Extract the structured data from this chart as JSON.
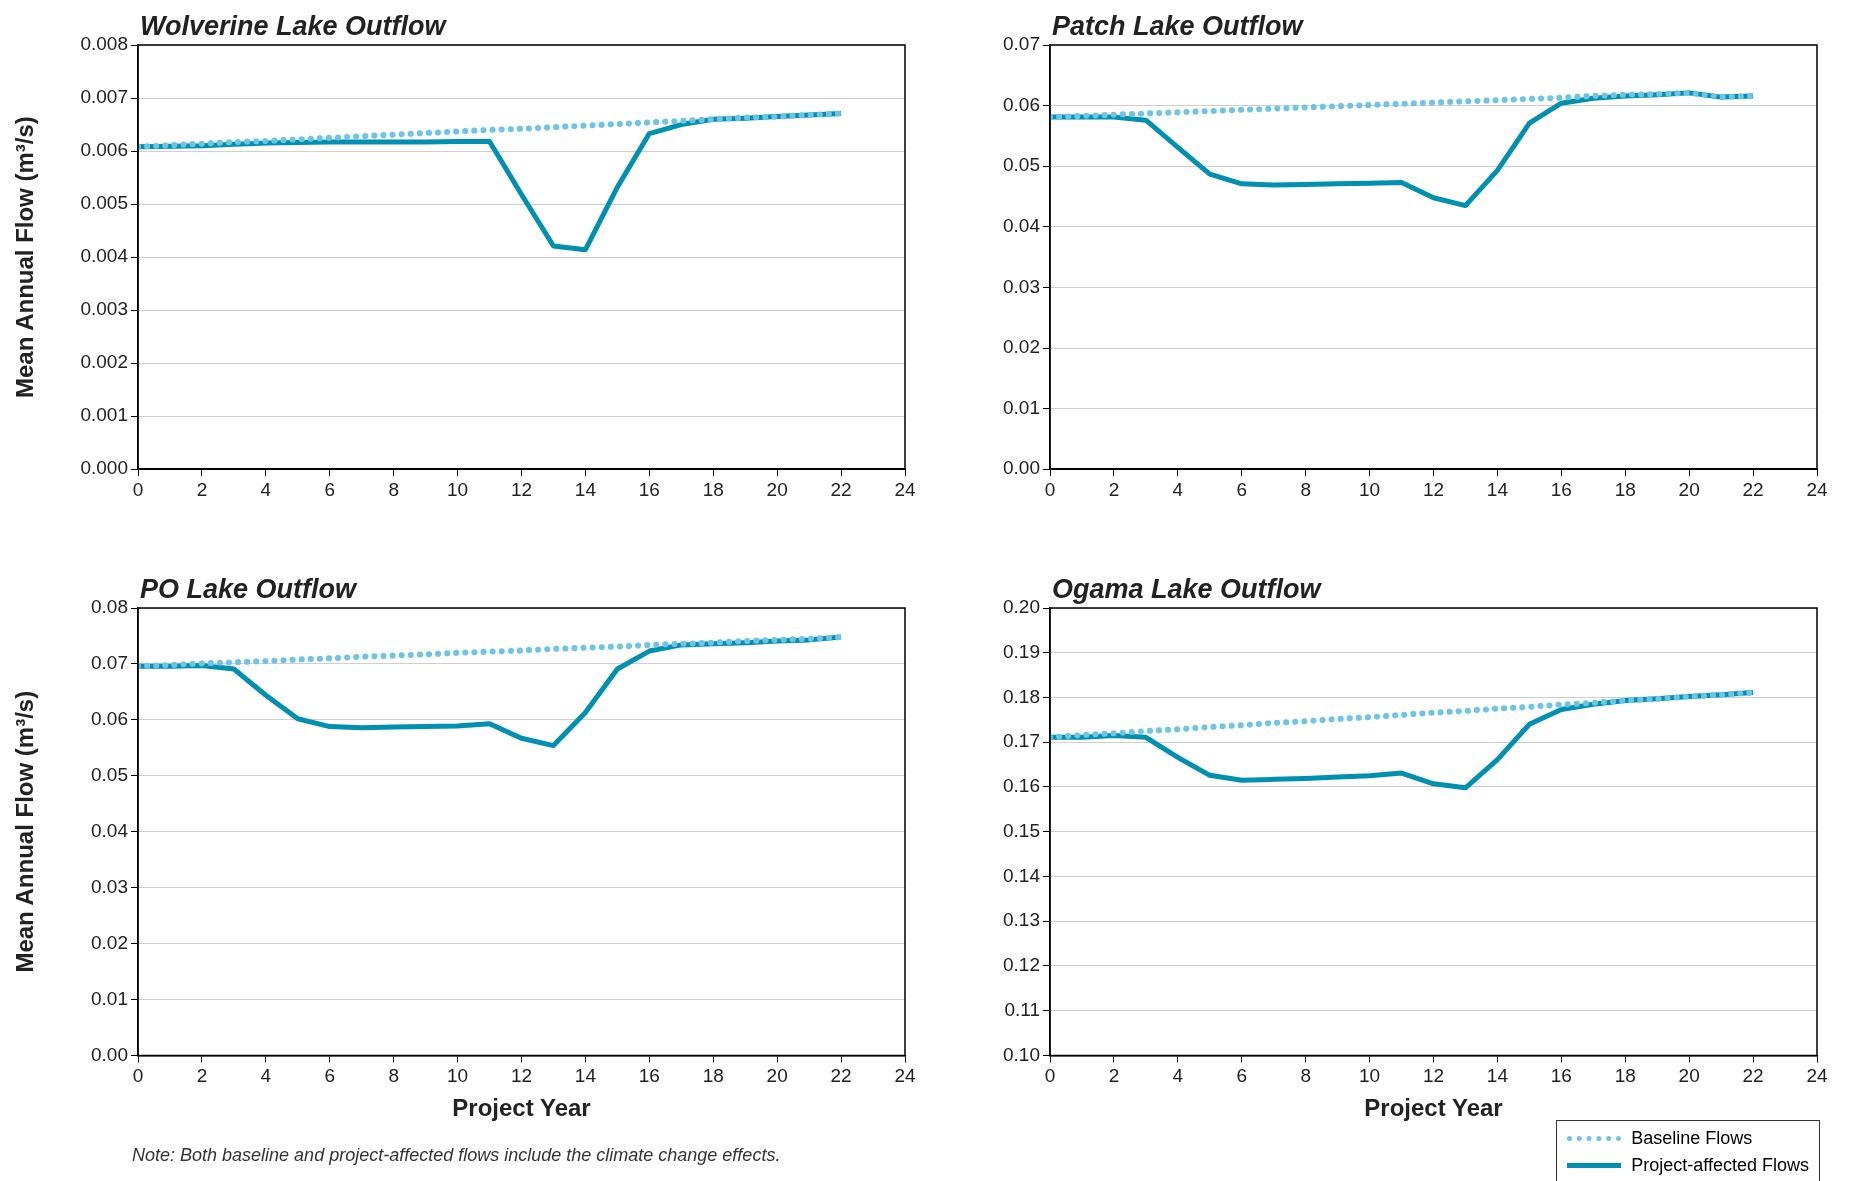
{
  "chart_data": [
    {
      "type": "line",
      "title": "Wolverine Lake Outflow",
      "ylabel": "Mean Annual Flow (m³/s)",
      "x": [
        0,
        1,
        2,
        3,
        4,
        5,
        6,
        7,
        8,
        9,
        10,
        11,
        12,
        13,
        14,
        15,
        16,
        17,
        18,
        19,
        20,
        21,
        22
      ],
      "xlim": [
        0,
        24
      ],
      "xticks": [
        0,
        2,
        4,
        6,
        8,
        10,
        12,
        14,
        16,
        18,
        20,
        22,
        24
      ],
      "ylim": [
        0,
        0.008
      ],
      "yticks": [
        {
          "value": 0,
          "label": "0.000"
        },
        0.001,
        0.002,
        0.003,
        0.004,
        0.005,
        0.006,
        0.007,
        0.008
      ],
      "grid": "y",
      "marker": "none",
      "series": [
        {
          "color": "#6cc5e8",
          "line_style": "dotted",
          "values": [
            0.00608,
            0.00611,
            0.00614,
            0.00617,
            0.00619,
            0.00622,
            0.00625,
            0.00628,
            0.00631,
            0.00634,
            0.00637,
            0.0064,
            0.00642,
            0.00645,
            0.00648,
            0.00651,
            0.00654,
            0.00657,
            0.0066,
            0.00663,
            0.00665,
            0.00668,
            0.00671
          ]
        },
        {
          "color": "#0090b0",
          "line_style": "solid",
          "values": [
            0.00608,
            0.00609,
            0.0061,
            0.00613,
            0.00615,
            0.00616,
            0.00617,
            0.00617,
            0.00617,
            0.00617,
            0.00618,
            0.00618,
            0.00518,
            0.00421,
            0.00414,
            0.00532,
            0.00633,
            0.0065,
            0.0066,
            0.00662,
            0.00665,
            0.00668,
            0.00671
          ]
        }
      ]
    },
    {
      "type": "line",
      "title": "Patch Lake Outflow",
      "x": [
        0,
        1,
        2,
        3,
        4,
        5,
        6,
        7,
        8,
        9,
        10,
        11,
        12,
        13,
        14,
        15,
        16,
        17,
        18,
        19,
        20,
        21,
        22
      ],
      "xlim": [
        0,
        24
      ],
      "xticks": [
        0,
        2,
        4,
        6,
        8,
        10,
        12,
        14,
        16,
        18,
        20,
        22,
        24
      ],
      "ylim": [
        0,
        0.07
      ],
      "yticks": [
        {
          "value": 0,
          "label": "0.00"
        },
        0.01,
        0.02,
        0.03,
        0.04,
        0.05,
        0.06,
        0.07
      ],
      "grid": "y",
      "marker": "none",
      "series": [
        {
          "color": "#6cc5e8",
          "line_style": "dotted",
          "values": [
            0.0581,
            0.0583,
            0.0585,
            0.0587,
            0.0589,
            0.0591,
            0.0593,
            0.0595,
            0.0597,
            0.0599,
            0.0601,
            0.0603,
            0.0605,
            0.0607,
            0.0609,
            0.0611,
            0.0613,
            0.0616,
            0.0618,
            0.0619,
            0.0621,
            0.0614,
            0.0616
          ]
        },
        {
          "color": "#0090b0",
          "line_style": "solid",
          "values": [
            0.0581,
            0.0581,
            0.0581,
            0.0576,
            0.0531,
            0.0487,
            0.0471,
            0.0469,
            0.047,
            0.0471,
            0.0472,
            0.0473,
            0.0448,
            0.0435,
            0.0493,
            0.0571,
            0.0604,
            0.0612,
            0.0616,
            0.0618,
            0.0621,
            0.0614,
            0.0616
          ]
        }
      ]
    },
    {
      "type": "line",
      "title": "PO Lake Outflow",
      "ylabel": "Mean Annual Flow (m³/s)",
      "xlabel": "Project Year",
      "annotations": [
        "Note: Both baseline and project-affected flows include the climate change effects."
      ],
      "x": [
        0,
        1,
        2,
        3,
        4,
        5,
        6,
        7,
        8,
        9,
        10,
        11,
        12,
        13,
        14,
        15,
        16,
        17,
        18,
        19,
        20,
        21,
        22
      ],
      "xlim": [
        0,
        24
      ],
      "xticks": [
        0,
        2,
        4,
        6,
        8,
        10,
        12,
        14,
        16,
        18,
        20,
        22,
        24
      ],
      "ylim": [
        0,
        0.08
      ],
      "yticks": [
        {
          "value": 0,
          "label": "0.00"
        },
        0.01,
        0.02,
        0.03,
        0.04,
        0.05,
        0.06,
        0.07,
        0.08
      ],
      "grid": "y",
      "marker": "none",
      "series": [
        {
          "color": "#6cc5e8",
          "line_style": "dotted",
          "values": [
            0.0696,
            0.0698,
            0.0701,
            0.0703,
            0.0705,
            0.0708,
            0.071,
            0.0713,
            0.0715,
            0.0717,
            0.072,
            0.0722,
            0.0724,
            0.0727,
            0.0729,
            0.0731,
            0.0734,
            0.0736,
            0.0738,
            0.0741,
            0.0743,
            0.0745,
            0.0748
          ]
        },
        {
          "color": "#0090b0",
          "line_style": "solid",
          "values": [
            0.0696,
            0.0696,
            0.0697,
            0.0691,
            0.0644,
            0.0602,
            0.0588,
            0.0586,
            0.0587,
            0.0588,
            0.0589,
            0.0593,
            0.0567,
            0.0554,
            0.0613,
            0.0691,
            0.0723,
            0.0734,
            0.0736,
            0.0738,
            0.0741,
            0.0743,
            0.0748
          ]
        }
      ]
    },
    {
      "type": "line",
      "title": "Ogama Lake Outflow",
      "xlabel": "Project Year",
      "legend": "bottom right",
      "x": [
        0,
        1,
        2,
        3,
        4,
        5,
        6,
        7,
        8,
        9,
        10,
        11,
        12,
        13,
        14,
        15,
        16,
        17,
        18,
        19,
        20,
        21,
        22
      ],
      "xlim": [
        0,
        24
      ],
      "xticks": [
        0,
        2,
        4,
        6,
        8,
        10,
        12,
        14,
        16,
        18,
        20,
        22,
        24
      ],
      "ylim": [
        0.1,
        0.2
      ],
      "yticks": [
        {
          "value": 0.1,
          "label": "0.10"
        },
        0.11,
        0.12,
        0.13,
        0.14,
        0.15,
        0.16,
        0.17,
        0.18,
        0.19,
        {
          "value": 0.2,
          "label": "0.20"
        }
      ],
      "grid": "y",
      "marker": "none",
      "series": [
        {
          "name": "Baseline Flows",
          "color": "#6cc5e8",
          "line_style": "dotted",
          "values": [
            0.1711,
            0.1716,
            0.172,
            0.1725,
            0.1729,
            0.1734,
            0.1738,
            0.1743,
            0.1747,
            0.1752,
            0.1756,
            0.1761,
            0.1766,
            0.177,
            0.1775,
            0.1779,
            0.1784,
            0.1788,
            0.1793,
            0.1797,
            0.1802,
            0.1806,
            0.1811
          ]
        },
        {
          "name": "Project-affected Flows",
          "color": "#0090b0",
          "line_style": "solid",
          "values": [
            0.1711,
            0.1711,
            0.1715,
            0.1711,
            0.1666,
            0.1626,
            0.1615,
            0.1617,
            0.1619,
            0.1622,
            0.1625,
            0.1631,
            0.1607,
            0.1598,
            0.1661,
            0.174,
            0.1773,
            0.1785,
            0.1793,
            0.1797,
            0.1802,
            0.1806,
            0.1811
          ]
        }
      ]
    }
  ]
}
